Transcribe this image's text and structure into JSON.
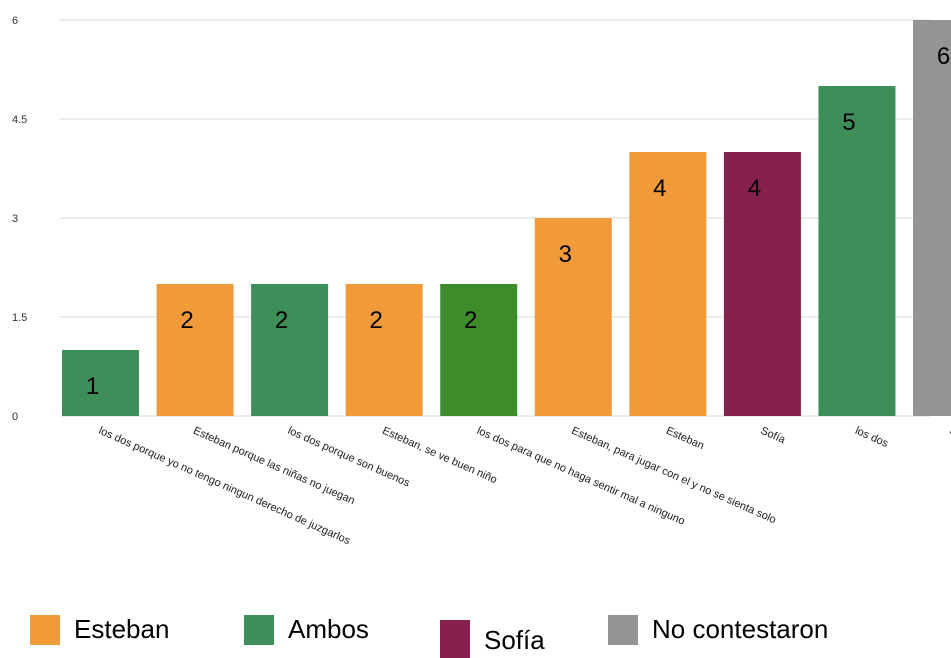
{
  "chart_data": {
    "type": "bar",
    "categories": [
      "los dos porque yo no tengo ningun derecho de juzgarlos",
      "Esteban porque las niñas no juegan",
      "los dos porque son buenos",
      "Esteban, se ve buen niño",
      "los dos para que no haga sentir mal a ninguno",
      "Esteban, para jugar con el y no se sienta solo",
      "Esteban",
      "Sofía",
      "los dos",
      "no contestaron"
    ],
    "values": [
      1,
      2,
      2,
      2,
      2,
      3,
      4,
      4,
      5,
      6
    ],
    "data_labels": [
      "1",
      "2",
      "2",
      "2",
      "2",
      "3",
      "4",
      "4",
      "5",
      "6"
    ],
    "bar_colors": [
      "#3e8e5a",
      "#f09a3a",
      "#3e8e5a",
      "#f09a3a",
      "#3d8b2a",
      "#f09a3a",
      "#f09a3a",
      "#86204d",
      "#3e8e5a",
      "#949494"
    ],
    "ylim": [
      0,
      6
    ],
    "yticks": [
      0,
      1.5,
      3,
      4.5,
      6
    ],
    "ytick_labels": [
      "0",
      "1.5",
      "3",
      "4.5",
      "6"
    ],
    "grid": true,
    "title": "",
    "xlabel": "",
    "ylabel": ""
  },
  "legend": {
    "placement": "bottom",
    "items": [
      {
        "label": "Esteban",
        "color": "#f09a3a"
      },
      {
        "label": "Ambos",
        "color": "#3e8e5a"
      },
      {
        "label": "Sofía",
        "color": "#86204d"
      },
      {
        "label": "No contestaron",
        "color": "#949494"
      }
    ]
  }
}
